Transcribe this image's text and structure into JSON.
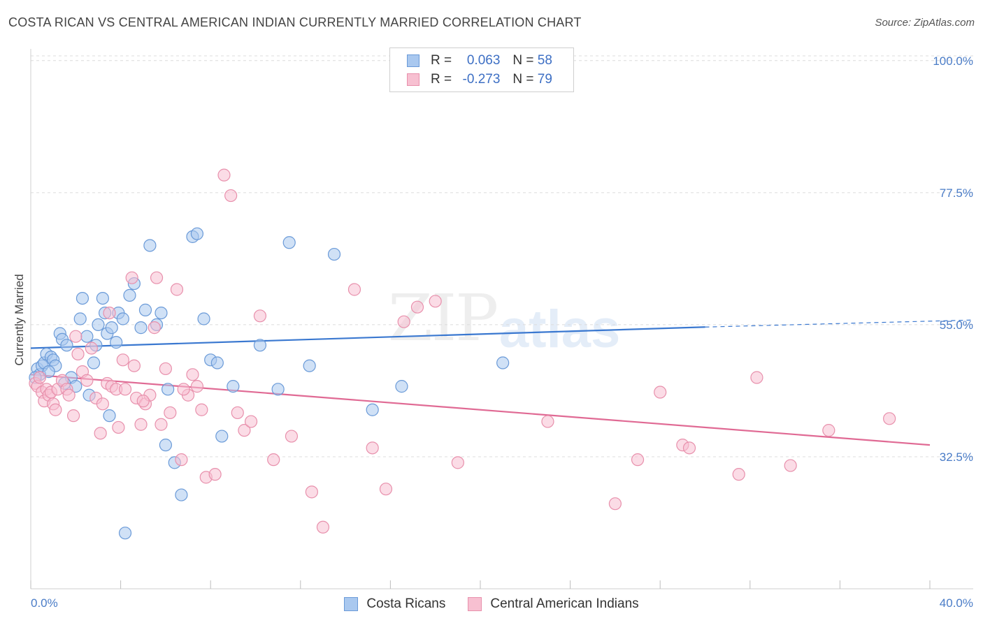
{
  "header": {
    "title": "COSTA RICAN VS CENTRAL AMERICAN INDIAN CURRENTLY MARRIED CORRELATION CHART",
    "source": "Source: ZipAtlas.com"
  },
  "watermark": {
    "zip": "ZIP",
    "atlas": "atlas"
  },
  "legend": {
    "rows": [
      {
        "r_label": "R =",
        "r_value": "0.063",
        "n_label": "N =",
        "n_value": "58",
        "color": "#a9c8ef",
        "border": "#6a9ad8"
      },
      {
        "r_label": "R =",
        "r_value": "-0.273",
        "n_label": "N =",
        "n_value": "79",
        "color": "#f7c0d1",
        "border": "#e890ac"
      }
    ]
  },
  "bottom_legend": {
    "items": [
      {
        "label": "Costa Ricans",
        "color": "#a9c8ef",
        "border": "#6a9ad8"
      },
      {
        "label": "Central American Indians",
        "color": "#f7c0d1",
        "border": "#e890ac"
      }
    ]
  },
  "chart_data": {
    "type": "scatter",
    "title": "COSTA RICAN VS CENTRAL AMERICAN INDIAN CURRENTLY MARRIED CORRELATION CHART",
    "xlabel": "",
    "ylabel": "Currently Married",
    "xlim": [
      0,
      40
    ],
    "ylim": [
      10,
      102
    ],
    "x_tick_labels": [
      "0.0%",
      "40.0%"
    ],
    "y_ticks": [
      32.5,
      55.0,
      77.5,
      100.0
    ],
    "y_tick_labels": [
      "32.5%",
      "55.0%",
      "77.5%",
      "100.0%"
    ],
    "grid": true,
    "legend_placement": "top-center",
    "series": [
      {
        "name": "Costa Ricans",
        "color": "#6a9ad8",
        "fill": "#a9c8ef",
        "trend_color": "#3a78d0",
        "trend": {
          "x0": 0,
          "y0": 51.0,
          "x1": 30,
          "y1": 54.6,
          "dash_to_x": 40,
          "dash_to_y": 55.8
        },
        "points": [
          [
            0.3,
            47.5
          ],
          [
            0.4,
            46.5
          ],
          [
            0.5,
            48.0
          ],
          [
            0.6,
            48.5
          ],
          [
            0.7,
            50.0
          ],
          [
            0.9,
            49.5
          ],
          [
            1.0,
            49.0
          ],
          [
            1.1,
            48.0
          ],
          [
            1.3,
            53.5
          ],
          [
            1.4,
            52.5
          ],
          [
            1.6,
            51.5
          ],
          [
            1.8,
            46.0
          ],
          [
            2.0,
            44.5
          ],
          [
            2.2,
            56.0
          ],
          [
            2.3,
            59.5
          ],
          [
            2.5,
            53.0
          ],
          [
            2.6,
            43.0
          ],
          [
            2.8,
            48.5
          ],
          [
            2.9,
            51.5
          ],
          [
            3.0,
            55.0
          ],
          [
            3.2,
            59.5
          ],
          [
            3.3,
            57.0
          ],
          [
            3.4,
            53.5
          ],
          [
            3.5,
            39.5
          ],
          [
            3.6,
            54.5
          ],
          [
            3.8,
            52.0
          ],
          [
            3.9,
            57.0
          ],
          [
            4.1,
            56.0
          ],
          [
            4.4,
            60.0
          ],
          [
            4.6,
            62.0
          ],
          [
            4.9,
            54.5
          ],
          [
            5.1,
            57.5
          ],
          [
            5.3,
            68.5
          ],
          [
            5.6,
            55.0
          ],
          [
            5.8,
            57.0
          ],
          [
            6.0,
            34.5
          ],
          [
            6.1,
            44.0
          ],
          [
            6.4,
            31.5
          ],
          [
            6.7,
            26.0
          ],
          [
            7.2,
            70.0
          ],
          [
            7.4,
            70.5
          ],
          [
            7.7,
            56.0
          ],
          [
            8.0,
            49.0
          ],
          [
            8.3,
            48.5
          ],
          [
            8.5,
            36.0
          ],
          [
            9.0,
            44.5
          ],
          [
            10.2,
            51.5
          ],
          [
            11.0,
            44.0
          ],
          [
            11.5,
            69.0
          ],
          [
            12.4,
            48.0
          ],
          [
            13.5,
            67.0
          ],
          [
            15.2,
            40.5
          ],
          [
            16.5,
            44.5
          ],
          [
            21.0,
            48.5
          ],
          [
            0.2,
            46.0
          ],
          [
            0.8,
            47.0
          ],
          [
            1.5,
            45.0
          ],
          [
            4.2,
            19.5
          ]
        ]
      },
      {
        "name": "Central American Indians",
        "color": "#e890ac",
        "fill": "#f7c0d1",
        "trend_color": "#e06a94",
        "trend": {
          "x0": 0,
          "y0": 46.5,
          "x1": 40,
          "y1": 34.5
        },
        "points": [
          [
            0.2,
            45.0
          ],
          [
            0.3,
            44.5
          ],
          [
            0.4,
            46.0
          ],
          [
            0.5,
            43.5
          ],
          [
            0.6,
            42.0
          ],
          [
            0.7,
            44.0
          ],
          [
            0.8,
            43.0
          ],
          [
            0.9,
            43.5
          ],
          [
            1.0,
            41.5
          ],
          [
            1.1,
            40.5
          ],
          [
            1.2,
            44.0
          ],
          [
            1.4,
            45.5
          ],
          [
            1.6,
            44.0
          ],
          [
            1.7,
            43.0
          ],
          [
            1.9,
            39.5
          ],
          [
            2.0,
            53.0
          ],
          [
            2.1,
            50.0
          ],
          [
            2.3,
            47.0
          ],
          [
            2.5,
            45.5
          ],
          [
            2.7,
            51.0
          ],
          [
            2.9,
            42.5
          ],
          [
            3.1,
            36.5
          ],
          [
            3.2,
            41.5
          ],
          [
            3.4,
            45.0
          ],
          [
            3.5,
            57.0
          ],
          [
            3.6,
            44.5
          ],
          [
            3.8,
            44.0
          ],
          [
            3.9,
            37.5
          ],
          [
            4.1,
            49.0
          ],
          [
            4.2,
            44.0
          ],
          [
            4.5,
            63.0
          ],
          [
            4.6,
            48.0
          ],
          [
            4.7,
            42.5
          ],
          [
            4.9,
            38.0
          ],
          [
            5.1,
            41.5
          ],
          [
            5.3,
            43.0
          ],
          [
            5.5,
            54.5
          ],
          [
            5.6,
            63.0
          ],
          [
            5.8,
            38.0
          ],
          [
            6.0,
            47.5
          ],
          [
            6.2,
            40.0
          ],
          [
            6.5,
            61.0
          ],
          [
            6.7,
            32.0
          ],
          [
            7.0,
            43.0
          ],
          [
            7.2,
            46.5
          ],
          [
            7.4,
            44.5
          ],
          [
            7.6,
            40.5
          ],
          [
            7.8,
            29.0
          ],
          [
            8.2,
            29.5
          ],
          [
            8.6,
            80.5
          ],
          [
            8.9,
            77.0
          ],
          [
            9.2,
            40.0
          ],
          [
            9.5,
            37.0
          ],
          [
            9.8,
            38.5
          ],
          [
            10.2,
            56.5
          ],
          [
            10.8,
            32.0
          ],
          [
            11.6,
            36.0
          ],
          [
            12.5,
            26.5
          ],
          [
            13.0,
            20.5
          ],
          [
            14.4,
            61.0
          ],
          [
            15.2,
            34.0
          ],
          [
            15.8,
            27.0
          ],
          [
            16.6,
            55.5
          ],
          [
            17.2,
            58.0
          ],
          [
            18.0,
            59.0
          ],
          [
            19.0,
            31.5
          ],
          [
            23.0,
            38.5
          ],
          [
            26.0,
            24.5
          ],
          [
            27.0,
            32.0
          ],
          [
            28.0,
            43.5
          ],
          [
            29.0,
            34.5
          ],
          [
            29.3,
            34.0
          ],
          [
            31.5,
            29.5
          ],
          [
            32.3,
            46.0
          ],
          [
            33.8,
            31.0
          ],
          [
            35.5,
            37.0
          ],
          [
            38.2,
            39.0
          ],
          [
            5.0,
            42.0
          ],
          [
            6.8,
            44.0
          ]
        ]
      }
    ]
  }
}
